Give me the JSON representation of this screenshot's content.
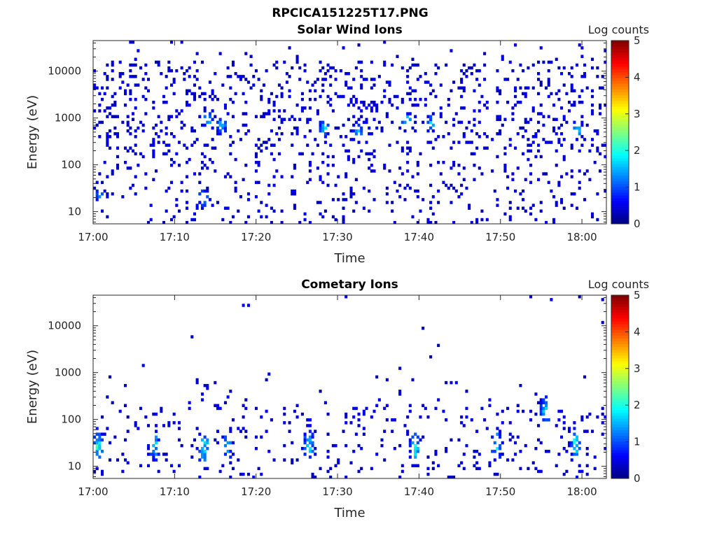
{
  "figure_title": "RPCICA151225T17.PNG",
  "chart_data": [
    {
      "type": "heatmap",
      "title": "Solar Wind Ions",
      "xlabel": "Time",
      "ylabel": "Energy (eV)",
      "x_ticks": [
        "17:00",
        "17:10",
        "17:20",
        "17:30",
        "17:40",
        "17:50",
        "18:00"
      ],
      "x_range": [
        "17:00",
        "18:03"
      ],
      "y_scale": "log",
      "y_ticks": [
        "10",
        "100",
        "1000",
        "10000"
      ],
      "y_range": [
        5.5,
        45000
      ],
      "colorbar": {
        "label": "Log counts",
        "ticks": [
          "0",
          "1",
          "2",
          "3",
          "4",
          "5"
        ],
        "range": [
          0,
          5
        ],
        "colormap": "jet"
      },
      "hot_spots": [
        {
          "time_min": 14,
          "energy_ev": 900,
          "log_counts": 1.8
        },
        {
          "time_min": 15.8,
          "energy_ev": 700,
          "log_counts": 1.8
        },
        {
          "time_min": 28.3,
          "energy_ev": 600,
          "log_counts": 1.8
        },
        {
          "time_min": 32.5,
          "energy_ev": 500,
          "log_counts": 1.6
        },
        {
          "time_min": 38.5,
          "energy_ev": 900,
          "log_counts": 1.7
        },
        {
          "time_min": 41.5,
          "energy_ev": 800,
          "log_counts": 1.7
        },
        {
          "time_min": 59.5,
          "energy_ev": 600,
          "log_counts": 1.8
        },
        {
          "time_min": 0.8,
          "energy_ev": 25,
          "log_counts": 1.5
        },
        {
          "time_min": 13.5,
          "energy_ev": 20,
          "log_counts": 1.7
        }
      ]
    },
    {
      "type": "heatmap",
      "title": "Cometary Ions",
      "xlabel": "Time",
      "ylabel": "Energy (eV)",
      "x_ticks": [
        "17:00",
        "17:10",
        "17:20",
        "17:30",
        "17:40",
        "17:50",
        "18:00"
      ],
      "x_range": [
        "17:00",
        "18:03"
      ],
      "y_scale": "log",
      "y_ticks": [
        "10",
        "100",
        "1000",
        "10000"
      ],
      "y_range": [
        5.5,
        45000
      ],
      "colorbar": {
        "label": "Log counts",
        "ticks": [
          "0",
          "1",
          "2",
          "3",
          "4",
          "5"
        ],
        "range": [
          0,
          5
        ],
        "colormap": "jet"
      },
      "bursts": [
        {
          "time_min": 0.6,
          "energy_ev": 30,
          "log_counts": 2.2
        },
        {
          "time_min": 7.5,
          "energy_ev": 30,
          "log_counts": 2.0
        },
        {
          "time_min": 13.6,
          "energy_ev": 25,
          "log_counts": 2.2
        },
        {
          "time_min": 16.5,
          "energy_ev": 30,
          "log_counts": 1.7
        },
        {
          "time_min": 26.5,
          "energy_ev": 30,
          "log_counts": 1.9
        },
        {
          "time_min": 39.5,
          "energy_ev": 25,
          "log_counts": 2.0
        },
        {
          "time_min": 49.5,
          "energy_ev": 30,
          "log_counts": 2.0
        },
        {
          "time_min": 55.5,
          "energy_ev": 150,
          "log_counts": 1.8
        },
        {
          "time_min": 59.2,
          "energy_ev": 30,
          "log_counts": 2.0
        }
      ]
    }
  ]
}
